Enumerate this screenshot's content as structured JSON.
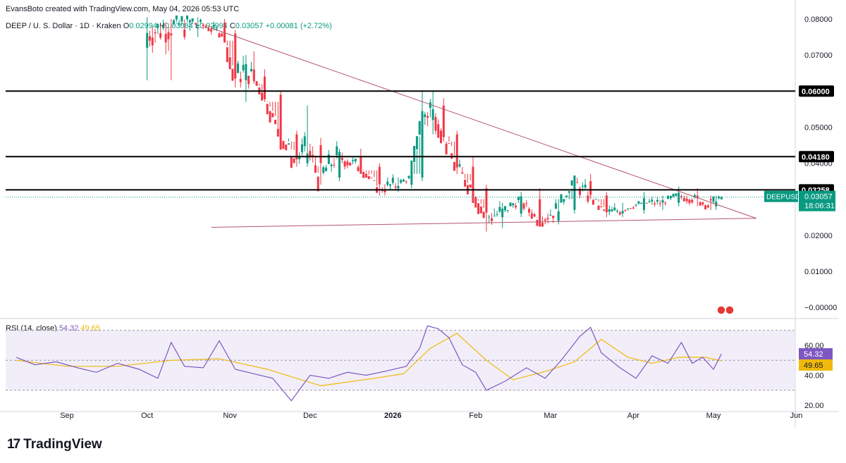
{
  "header": {
    "created": "EvansBoto created with TradingView.com, May 04, 2026 05:53 UTC"
  },
  "symbol": {
    "title": "DEEP / U. S. Dollar · 1D · Kraken",
    "o_label": "O",
    "o_value": "0.02994",
    "h_label": "H",
    "h_value": "0.03084",
    "l_label": "L",
    "l_value": "0.02994",
    "c_label": "C",
    "c_value": "0.03057",
    "change": "+0.00081 (+2.72%)"
  },
  "rsi": {
    "label": "RSI (14, close)",
    "value": "54.32",
    "ma_value": "49.65"
  },
  "brand": {
    "name": "TradingView",
    "logo": "17"
  },
  "colors": {
    "up": "#089981",
    "down": "#f23645",
    "trend": "#b4566d",
    "rsi": "#7e57c2",
    "rsi_ma": "#f0b90b",
    "rsi_band": "#ede7f6",
    "level": "#000000"
  },
  "price_badge": {
    "ticker": "DEEPUSD",
    "price": "0.03057",
    "countdown": "18:06:31"
  },
  "chart_data": [
    {
      "type": "candlestick",
      "ylim": [
        -0.0002,
        0.0808
      ],
      "y_ticks": [
        "0.08000",
        "0.07000",
        "0.06000",
        "0.05000",
        "0.04000",
        "0.03000",
        "0.02000",
        "0.01000",
        "−0.00000"
      ],
      "x_ticks": [
        "Sep",
        "Oct",
        "Nov",
        "Dec",
        "2026",
        "Feb",
        "Mar",
        "Apr",
        "May",
        "Jun"
      ],
      "horizontal_levels": [
        {
          "value": 0.06,
          "label": "0.06000"
        },
        {
          "value": 0.0418,
          "label": "0.04180"
        },
        {
          "value": 0.03258,
          "label": "0.03258"
        }
      ],
      "trendlines": [
        {
          "from": [
            "2025-10-25",
            0.0775
          ],
          "to": [
            "2026-05-17",
            0.0247
          ]
        },
        {
          "from": [
            "2025-10-25",
            0.0222
          ],
          "to": [
            "2026-05-17",
            0.0247
          ]
        }
      ],
      "series": [
        {
          "name": "DEEPUSD",
          "ohlc_anchors": [
            [
              "2025-10-01",
              0.072,
              0.082,
              0.063,
              0.076
            ],
            [
              "2025-10-10",
              0.076,
              0.08,
              0.063,
              0.078
            ],
            [
              "2025-10-20",
              0.078,
              0.081,
              0.075,
              0.079
            ],
            [
              "2025-10-30",
              0.079,
              0.08,
              0.074,
              0.076
            ],
            [
              "2025-11-03",
              0.076,
              0.077,
              0.061,
              0.063
            ],
            [
              "2025-11-07",
              0.063,
              0.07,
              0.057,
              0.066
            ],
            [
              "2025-11-10",
              0.066,
              0.071,
              0.062,
              0.064
            ],
            [
              "2025-11-14",
              0.064,
              0.066,
              0.057,
              0.059
            ],
            [
              "2025-11-20",
              0.059,
              0.06,
              0.046,
              0.048
            ],
            [
              "2025-11-26",
              0.048,
              0.049,
              0.039,
              0.04
            ],
            [
              "2025-11-30",
              0.04,
              0.056,
              0.039,
              0.045
            ],
            [
              "2025-12-05",
              0.045,
              0.047,
              0.034,
              0.036
            ],
            [
              "2025-12-12",
              0.036,
              0.044,
              0.035,
              0.042
            ],
            [
              "2025-12-20",
              0.042,
              0.044,
              0.038,
              0.039
            ],
            [
              "2025-12-27",
              0.039,
              0.04,
              0.031,
              0.033
            ],
            [
              "2026-01-03",
              0.033,
              0.036,
              0.032,
              0.034
            ],
            [
              "2026-01-08",
              0.034,
              0.037,
              0.033,
              0.036
            ],
            [
              "2026-01-12",
              0.036,
              0.06,
              0.035,
              0.052
            ],
            [
              "2026-01-16",
              0.052,
              0.06,
              0.048,
              0.056
            ],
            [
              "2026-01-20",
              0.056,
              0.058,
              0.046,
              0.048
            ],
            [
              "2026-01-25",
              0.048,
              0.049,
              0.037,
              0.039
            ],
            [
              "2026-01-31",
              0.039,
              0.042,
              0.03,
              0.033
            ],
            [
              "2026-02-05",
              0.033,
              0.034,
              0.021,
              0.025
            ],
            [
              "2026-02-11",
              0.025,
              0.029,
              0.022,
              0.026
            ],
            [
              "2026-02-18",
              0.026,
              0.032,
              0.025,
              0.03
            ],
            [
              "2026-02-25",
              0.03,
              0.033,
              0.023,
              0.024
            ],
            [
              "2026-03-04",
              0.024,
              0.03,
              0.023,
              0.027
            ],
            [
              "2026-03-10",
              0.027,
              0.036,
              0.026,
              0.035
            ],
            [
              "2026-03-16",
              0.035,
              0.037,
              0.03,
              0.031
            ],
            [
              "2026-03-22",
              0.031,
              0.032,
              0.025,
              0.026
            ],
            [
              "2026-03-28",
              0.026,
              0.029,
              0.025,
              0.027
            ],
            [
              "2026-04-05",
              0.027,
              0.032,
              0.026,
              0.029
            ],
            [
              "2026-04-12",
              0.029,
              0.031,
              0.027,
              0.029
            ],
            [
              "2026-04-18",
              0.029,
              0.0335,
              0.028,
              0.031
            ],
            [
              "2026-04-25",
              0.031,
              0.033,
              0.028,
              0.03
            ],
            [
              "2026-04-30",
              0.03,
              0.031,
              0.027,
              0.028
            ],
            [
              "2026-05-02",
              0.028,
              0.031,
              0.027,
              0.0298
            ],
            [
              "2026-05-04",
              0.02994,
              0.03084,
              0.02994,
              0.03057
            ]
          ]
        }
      ]
    },
    {
      "type": "line",
      "ylim": [
        12,
        82
      ],
      "y_ticks": [
        "60.00",
        "40.00",
        "20.00"
      ],
      "band": [
        30,
        70
      ],
      "mid_line": 50,
      "series": [
        {
          "name": "RSI",
          "points": [
            [
              "2025-08-13",
              52
            ],
            [
              "2025-08-20",
              47
            ],
            [
              "2025-08-28",
              49
            ],
            [
              "2025-09-05",
              45
            ],
            [
              "2025-09-12",
              42
            ],
            [
              "2025-09-20",
              48
            ],
            [
              "2025-09-28",
              44
            ],
            [
              "2025-10-05",
              38
            ],
            [
              "2025-10-10",
              62
            ],
            [
              "2025-10-15",
              46
            ],
            [
              "2025-10-22",
              45
            ],
            [
              "2025-10-28",
              63
            ],
            [
              "2025-11-03",
              44
            ],
            [
              "2025-11-10",
              41
            ],
            [
              "2025-11-17",
              38
            ],
            [
              "2025-11-24",
              23
            ],
            [
              "2025-12-01",
              40
            ],
            [
              "2025-12-08",
              38
            ],
            [
              "2025-12-15",
              42
            ],
            [
              "2025-12-22",
              40
            ],
            [
              "2025-12-30",
              43
            ],
            [
              "2026-01-06",
              46
            ],
            [
              "2026-01-11",
              58
            ],
            [
              "2026-01-14",
              73
            ],
            [
              "2026-01-18",
              71
            ],
            [
              "2026-01-22",
              65
            ],
            [
              "2026-01-27",
              47
            ],
            [
              "2026-02-01",
              42
            ],
            [
              "2026-02-05",
              30
            ],
            [
              "2026-02-12",
              36
            ],
            [
              "2026-02-20",
              45
            ],
            [
              "2026-02-27",
              38
            ],
            [
              "2026-03-05",
              50
            ],
            [
              "2026-03-12",
              66
            ],
            [
              "2026-03-16",
              72
            ],
            [
              "2026-03-20",
              55
            ],
            [
              "2026-03-27",
              45
            ],
            [
              "2026-04-02",
              38
            ],
            [
              "2026-04-08",
              53
            ],
            [
              "2026-04-14",
              48
            ],
            [
              "2026-04-19",
              62
            ],
            [
              "2026-04-23",
              48
            ],
            [
              "2026-04-27",
              52
            ],
            [
              "2026-05-01",
              44
            ],
            [
              "2026-05-04",
              54.32
            ]
          ]
        },
        {
          "name": "RSI-based MA",
          "points": [
            [
              "2025-08-13",
              50
            ],
            [
              "2025-09-01",
              46
            ],
            [
              "2025-09-20",
              46
            ],
            [
              "2025-10-10",
              50
            ],
            [
              "2025-10-28",
              51
            ],
            [
              "2025-11-15",
              44
            ],
            [
              "2025-12-05",
              33
            ],
            [
              "2025-12-25",
              38
            ],
            [
              "2026-01-05",
              41
            ],
            [
              "2026-01-15",
              58
            ],
            [
              "2026-01-25",
              68
            ],
            [
              "2026-02-05",
              50
            ],
            [
              "2026-02-15",
              37
            ],
            [
              "2026-02-28",
              43
            ],
            [
              "2026-03-10",
              49
            ],
            [
              "2026-03-20",
              64
            ],
            [
              "2026-03-30",
              52
            ],
            [
              "2026-04-08",
              48
            ],
            [
              "2026-04-18",
              52
            ],
            [
              "2026-04-28",
              52
            ],
            [
              "2026-05-04",
              49.65
            ]
          ]
        }
      ]
    }
  ]
}
